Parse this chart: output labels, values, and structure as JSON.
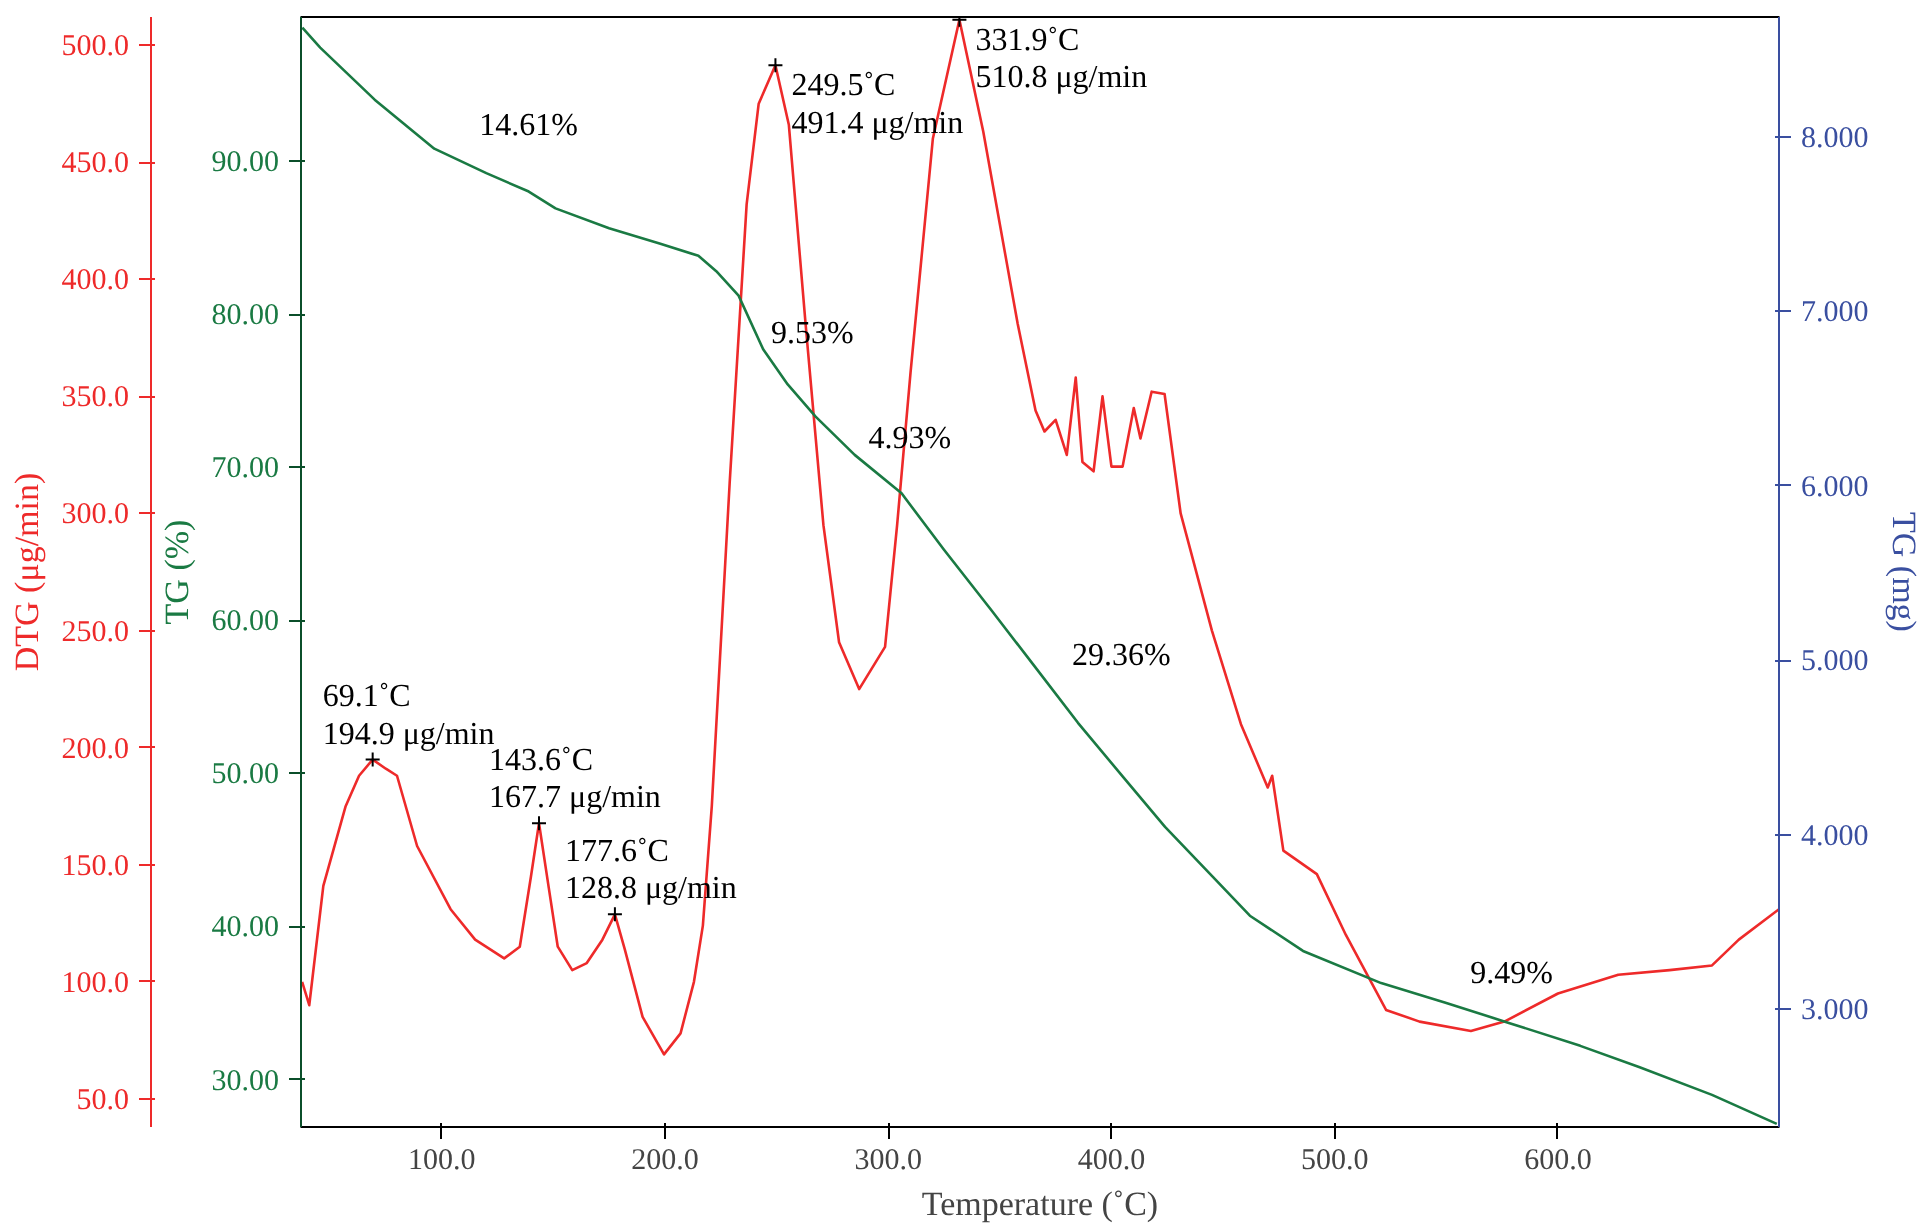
{
  "chart_data": {
    "type": "line",
    "xlabel": "Temperature (˚C)",
    "ylabel": "DTG (μg/min)",
    "y2label": "TG (%)",
    "y3label": "TG (mg)",
    "xlim": [
      37,
      699
    ],
    "xticks": [
      {
        "value": 100,
        "label": "100.0"
      },
      {
        "value": 200,
        "label": "200.0"
      },
      {
        "value": 300,
        "label": "300.0"
      },
      {
        "value": 400,
        "label": "400.0"
      },
      {
        "value": 500,
        "label": "500.0"
      },
      {
        "value": 600,
        "label": "600.0"
      }
    ],
    "ylim": [
      38,
      512
    ],
    "yticks": [
      {
        "value": 50,
        "label": "50.0"
      },
      {
        "value": 100,
        "label": "100.0"
      },
      {
        "value": 150,
        "label": "150.0"
      },
      {
        "value": 200,
        "label": "200.0"
      },
      {
        "value": 250,
        "label": "250.0"
      },
      {
        "value": 300,
        "label": "300.0"
      },
      {
        "value": 350,
        "label": "350.0"
      },
      {
        "value": 400,
        "label": "400.0"
      },
      {
        "value": 450,
        "label": "450.0"
      },
      {
        "value": 500,
        "label": "500.0"
      }
    ],
    "y2lim": [
      26.9,
      99.4
    ],
    "y2ticks": [
      {
        "value": 30,
        "label": "30.00"
      },
      {
        "value": 40,
        "label": "40.00"
      },
      {
        "value": 50,
        "label": "50.00"
      },
      {
        "value": 60,
        "label": "60.00"
      },
      {
        "value": 70,
        "label": "70.00"
      },
      {
        "value": 80,
        "label": "80.00"
      },
      {
        "value": 90,
        "label": "90.00"
      }
    ],
    "y3lim": [
      2.324,
      8.687
    ],
    "y3ticks": [
      {
        "value": 3,
        "label": "3.000"
      },
      {
        "value": 4,
        "label": "4.000"
      },
      {
        "value": 5,
        "label": "5.000"
      },
      {
        "value": 6,
        "label": "6.000"
      },
      {
        "value": 7,
        "label": "7.000"
      },
      {
        "value": 8,
        "label": "8.000"
      }
    ],
    "grid": false,
    "marker": "none",
    "line_style": "solid",
    "series": [
      {
        "color": "#ee2a2a",
        "x": [
          37.5,
          40.7,
          47,
          57,
          63,
          69.1,
          75,
          80,
          89,
          104,
          115,
          128,
          135,
          140,
          143.6,
          148,
          152,
          158.5,
          165,
          172,
          177.6,
          182,
          190,
          199.6,
          207,
          213,
          217,
          221,
          229,
          236.6,
          242,
          249.5,
          255.5,
          263,
          271,
          278,
          287,
          298.6,
          304,
          310,
          320,
          331.9,
          342.6,
          358,
          366,
          370,
          375,
          380,
          384,
          387,
          392,
          396,
          400,
          405,
          410,
          413,
          418,
          423.8,
          431,
          445,
          458,
          470,
          472,
          477,
          492,
          505,
          523,
          538,
          561,
          576,
          600,
          627,
          650,
          669,
          681,
          699
        ],
        "values": [
          100,
          90,
          141,
          175,
          188,
          194.9,
          191,
          188,
          158,
          131,
          118,
          110,
          115,
          145,
          167.7,
          140,
          115,
          105,
          108,
          118,
          128.8,
          114,
          85,
          69,
          78,
          100,
          124,
          175,
          313,
          432,
          475,
          491.4,
          466,
          381,
          295,
          245,
          225,
          243,
          295,
          360,
          460,
          510.8,
          463,
          381,
          344,
          335,
          340,
          325,
          358,
          322,
          318,
          350,
          320,
          320,
          345,
          332,
          352,
          351,
          300,
          250,
          210,
          183,
          188,
          156,
          146,
          120,
          88,
          83,
          79,
          83,
          95,
          103,
          105,
          107,
          118,
          131
        ]
      },
      {
        "color": "#1a7a43",
        "axis": "y2",
        "x": [
          37.6,
          45.6,
          70,
          96.7,
          120,
          139,
          151,
          175,
          197.6,
          215,
          223,
          233,
          244,
          255,
          267.5,
          285,
          306,
          308,
          325,
          346.5,
          365,
          385,
          405,
          424,
          445,
          462,
          485.8,
          520.8,
          550,
          578,
          610,
          636.6,
          669,
          698
        ],
        "values": [
          98.7,
          97.4,
          94.0,
          90.8,
          89.2,
          88.0,
          86.9,
          85.6,
          84.6,
          83.8,
          82.8,
          81.2,
          77.7,
          75.4,
          73.3,
          70.8,
          68.3,
          67.9,
          64.6,
          60.6,
          57.1,
          53.3,
          49.8,
          46.5,
          43.3,
          40.7,
          38.4,
          36.3,
          35.0,
          33.7,
          32.2,
          30.8,
          29.0,
          27.1
        ]
      }
    ],
    "annotations": [
      {
        "text": "69.1˚C\n194.9 μg/min",
        "x": 69.1,
        "y": 194.9
      },
      {
        "text": "143.6˚C\n167.7 μg/min",
        "x": 143.6,
        "y": 167.7
      },
      {
        "text": "177.6˚C\n128.8 μg/min",
        "x": 177.6,
        "y": 128.8
      },
      {
        "text": "249.5˚C\n491.4 μg/min",
        "x": 249.5,
        "y": 491.4
      },
      {
        "text": "331.9˚C\n510.8 μg/min",
        "x": 331.9,
        "y": 510.8
      },
      "14.61%",
      "9.53%",
      "4.93%",
      "29.36%",
      "9.49%"
    ]
  }
}
